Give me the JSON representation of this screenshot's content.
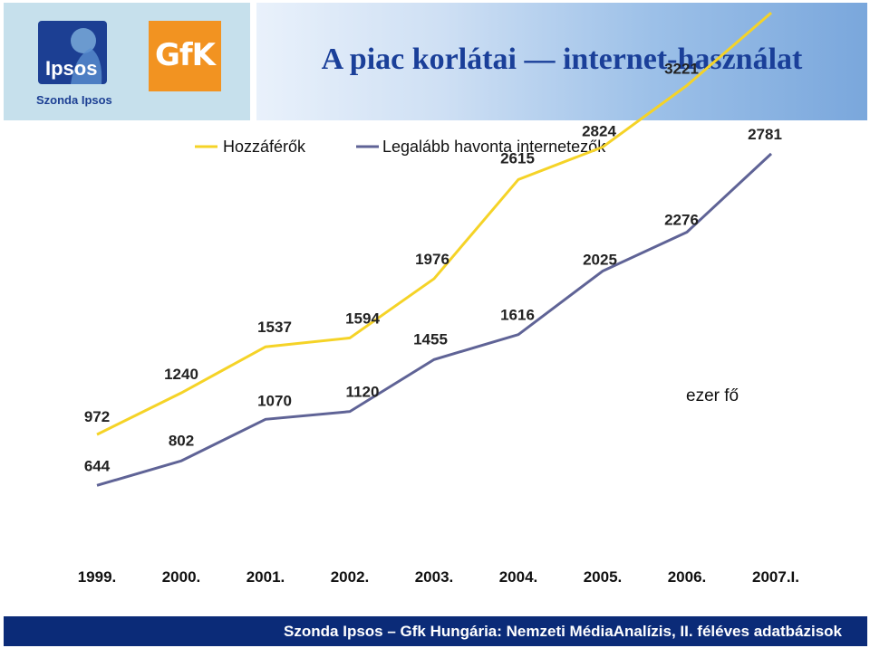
{
  "header": {
    "title": "A piac korlátai — internet-használat",
    "logo_ipsos_text": "Ipsos",
    "logo_ipsos_sub": "Szonda Ipsos",
    "logo_gfk_text": "GfK"
  },
  "footer": {
    "text": "Szonda Ipsos – Gfk Hungária: Nemzeti MédiaAnalízis, II. féléves adatbázisok"
  },
  "colors": {
    "series1": "#f5d327",
    "series2": "#5f6396",
    "title": "#1a3f99",
    "footer_bg": "#0b2b78"
  },
  "chart_data": {
    "type": "line",
    "categories": [
      "1999.",
      "2000.",
      "2001.",
      "2002.",
      "2003.",
      "2004.",
      "2005.",
      "2006.",
      "2007.I."
    ],
    "series": [
      {
        "name": "Hozzáférők",
        "values": [
          972,
          1240,
          1537,
          1594,
          1976,
          2615,
          2824,
          3221,
          3689
        ]
      },
      {
        "name": "Legalább havonta internetezők",
        "values": [
          644,
          802,
          1070,
          1120,
          1455,
          1616,
          2025,
          2276,
          2781
        ]
      }
    ],
    "unit_note": "ezer fő",
    "legend_position": "top",
    "grid": false
  }
}
